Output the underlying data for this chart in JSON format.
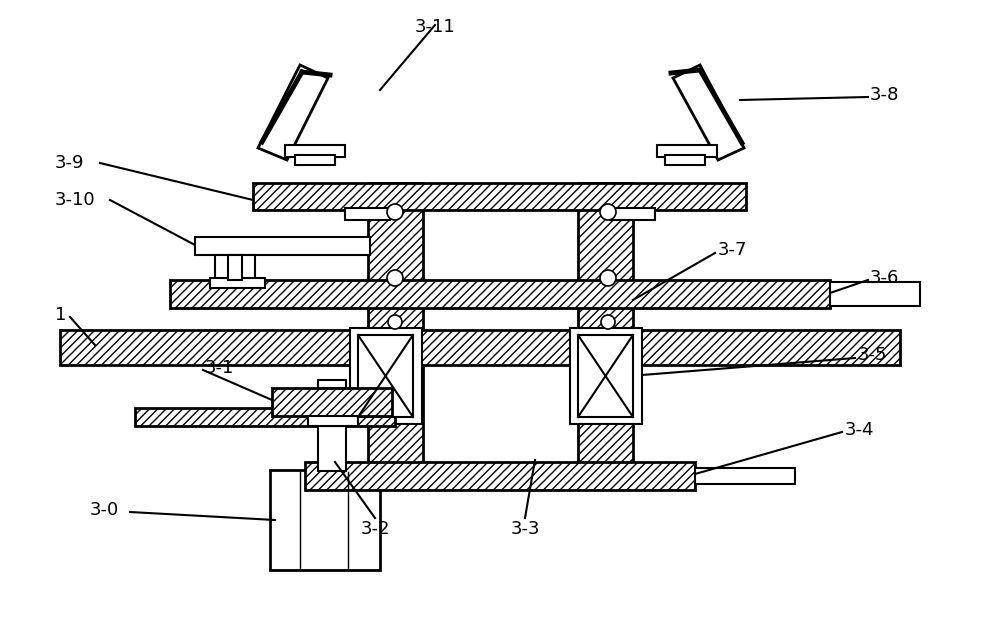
{
  "bg_color": "#ffffff",
  "line_color": "#000000",
  "fig_width": 10.0,
  "fig_height": 6.2,
  "label_fontsize": 13
}
